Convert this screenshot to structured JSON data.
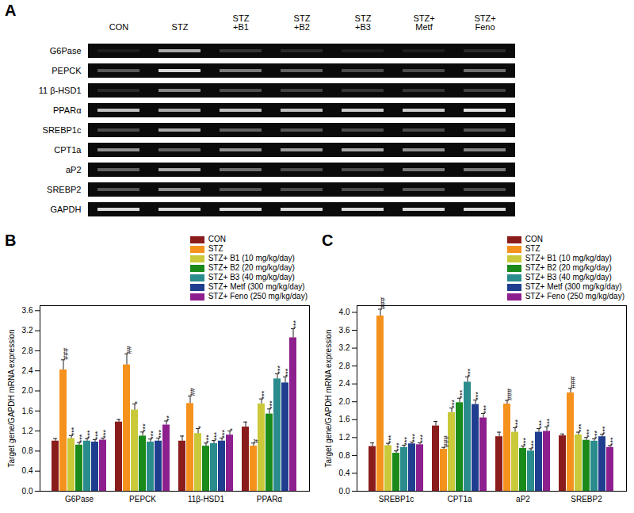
{
  "chart_data": [
    {
      "type": "gel",
      "panel": "A",
      "x": [
        "CON",
        "STZ",
        "STZ\n+B1",
        "STZ\n+B2",
        "STZ\n+B3",
        "STZ+\nMetf",
        "STZ+\nFeno"
      ],
      "y": [
        "G6Pase",
        "PEPCK",
        "11 β-HSD1",
        "PPARα",
        "SREBP1c",
        "CPT1a",
        "aP2",
        "SREBP2",
        "GAPDH"
      ],
      "cells": [
        [
          0.1,
          0.7,
          0.2,
          0.15,
          0.1,
          0.1,
          0.15
        ],
        [
          0.35,
          0.9,
          0.5,
          0.4,
          0.3,
          0.3,
          0.45
        ],
        [
          0.15,
          0.55,
          0.3,
          0.25,
          0.2,
          0.2,
          0.25
        ],
        [
          0.8,
          0.7,
          0.8,
          0.8,
          0.85,
          0.85,
          0.95
        ],
        [
          0.3,
          0.7,
          0.4,
          0.35,
          0.3,
          0.3,
          0.35
        ],
        [
          0.6,
          0.4,
          0.6,
          0.65,
          0.7,
          0.6,
          0.55
        ],
        [
          0.4,
          0.7,
          0.45,
          0.3,
          0.3,
          0.5,
          0.5
        ],
        [
          0.35,
          0.6,
          0.35,
          0.3,
          0.3,
          0.35,
          0.3
        ],
        [
          0.9,
          0.9,
          0.9,
          0.9,
          0.9,
          0.9,
          0.9
        ]
      ],
      "intensity_range": [
        0,
        1
      ]
    },
    {
      "type": "bar",
      "panel": "B",
      "ylabel": "Target gene/GAPDH mRNA expression",
      "categories": [
        "G6Pase",
        "PEPCK",
        "11β-HSD1",
        "PPARα"
      ],
      "ylim": [
        0,
        3.7
      ],
      "yticks": [
        {
          "value": 0,
          "label": "0.0"
        },
        0.4,
        0.8,
        1.2,
        1.6,
        {
          "value": 2,
          "label": "2.0"
        },
        2.4,
        2.8,
        3.2,
        3.6
      ],
      "legend": "top-right",
      "series": [
        {
          "name": "CON",
          "color": "#8b1c1c",
          "values": [
            1.0,
            1.38,
            1.0,
            1.28
          ],
          "errors": [
            0.05,
            0.05,
            0.1,
            0.1
          ],
          "annotations": [
            null,
            null,
            null,
            null
          ]
        },
        {
          "name": "STZ",
          "color": "#f5921e",
          "values": [
            2.42,
            2.52,
            1.75,
            0.9
          ],
          "errors": [
            0.2,
            0.22,
            0.15,
            0.06
          ],
          "annotations": [
            "###",
            "##",
            "##",
            "#"
          ]
        },
        {
          "name": "STZ+ B1 (10 mg/kg/day)",
          "color": "#c9c93a",
          "values": [
            1.05,
            1.62,
            1.15,
            1.74
          ],
          "errors": [
            0.06,
            0.12,
            0.1,
            0.1
          ],
          "annotations": [
            "***",
            "*",
            "*",
            "***"
          ]
        },
        {
          "name": "STZ+ B2 (20 mg/kg/day)",
          "color": "#1a8a1a",
          "values": [
            0.92,
            1.1,
            0.9,
            1.54
          ],
          "errors": [
            0.05,
            0.08,
            0.06,
            0.1
          ],
          "annotations": [
            "***",
            "***",
            "***",
            "***"
          ]
        },
        {
          "name": "STZ+ B3 (40 mg/kg/day)",
          "color": "#2a8c8c",
          "values": [
            1.0,
            0.98,
            0.95,
            2.24
          ],
          "errors": [
            0.05,
            0.06,
            0.06,
            0.1
          ],
          "annotations": [
            "***",
            "***",
            "***",
            "***"
          ]
        },
        {
          "name": "STZ+ Metf (300 mg/kg/day)",
          "color": "#1f3e8f",
          "values": [
            0.98,
            1.0,
            1.0,
            2.16
          ],
          "errors": [
            0.05,
            0.06,
            0.06,
            0.12
          ],
          "annotations": [
            "***",
            "***",
            "***",
            "***"
          ]
        },
        {
          "name": "STZ+ Feno (250 mg/kg/day)",
          "color": "#8e1f8e",
          "values": [
            1.02,
            1.32,
            1.12,
            3.06
          ],
          "errors": [
            0.04,
            0.08,
            0.08,
            0.18
          ],
          "annotations": [
            "***",
            "**",
            "*",
            "***"
          ]
        }
      ]
    },
    {
      "type": "bar",
      "panel": "C",
      "ylabel": "Target gene/GAPDH mRNA expression",
      "categories": [
        "SREBP1c",
        "CPT1a",
        "aP2",
        "SREBP2"
      ],
      "ylim": [
        0,
        4.15
      ],
      "yticks": [
        {
          "value": 0,
          "label": "0.0"
        },
        0.4,
        0.8,
        1.2,
        1.6,
        {
          "value": 2,
          "label": "2.0"
        },
        2.4,
        2.8,
        3.2,
        3.6,
        {
          "value": 4,
          "label": "4.0"
        }
      ],
      "legend": "top-right",
      "series": [
        {
          "name": "CON",
          "color": "#8b1c1c",
          "values": [
            1.0,
            1.46,
            1.22,
            1.24
          ],
          "errors": [
            0.08,
            0.1,
            0.1,
            0.04
          ],
          "annotations": [
            null,
            null,
            null,
            null
          ]
        },
        {
          "name": "STZ",
          "color": "#f5921e",
          "values": [
            3.92,
            0.94,
            1.95,
            2.2
          ],
          "errors": [
            0.15,
            0.04,
            0.08,
            0.1
          ],
          "annotations": [
            "###",
            "###",
            "###",
            "###"
          ]
        },
        {
          "name": "STZ+ B1 (10 mg/kg/day)",
          "color": "#c9c93a",
          "values": [
            1.02,
            1.76,
            1.32,
            1.26
          ],
          "errors": [
            0.05,
            0.1,
            0.1,
            0.06
          ],
          "annotations": [
            "***",
            "***",
            "***",
            "***"
          ]
        },
        {
          "name": "STZ+ B2 (20 mg/kg/day)",
          "color": "#1a8a1a",
          "values": [
            0.85,
            1.98,
            0.96,
            1.14
          ],
          "errors": [
            0.05,
            0.1,
            0.05,
            0.06
          ],
          "annotations": [
            "***",
            "***",
            "***",
            "***"
          ]
        },
        {
          "name": "STZ+ B3 (40 mg/kg/day)",
          "color": "#2a8c8c",
          "values": [
            0.98,
            2.44,
            0.9,
            1.12
          ],
          "errors": [
            0.05,
            0.12,
            0.05,
            0.05
          ],
          "annotations": [
            "***",
            "***",
            "***",
            "***"
          ]
        },
        {
          "name": "STZ+ Metf (300 mg/kg/day)",
          "color": "#1f3e8f",
          "values": [
            1.06,
            1.94,
            1.32,
            1.22
          ],
          "errors": [
            0.04,
            0.1,
            0.08,
            0.05
          ],
          "annotations": [
            "***",
            "***",
            "***",
            "***"
          ]
        },
        {
          "name": "STZ+ Feno (250 mg/kg/day)",
          "color": "#8e1f8e",
          "values": [
            1.04,
            1.64,
            1.34,
            0.98
          ],
          "errors": [
            0.04,
            0.1,
            0.1,
            0.04
          ],
          "annotations": [
            "***",
            "***",
            "***",
            "***"
          ]
        }
      ]
    }
  ]
}
